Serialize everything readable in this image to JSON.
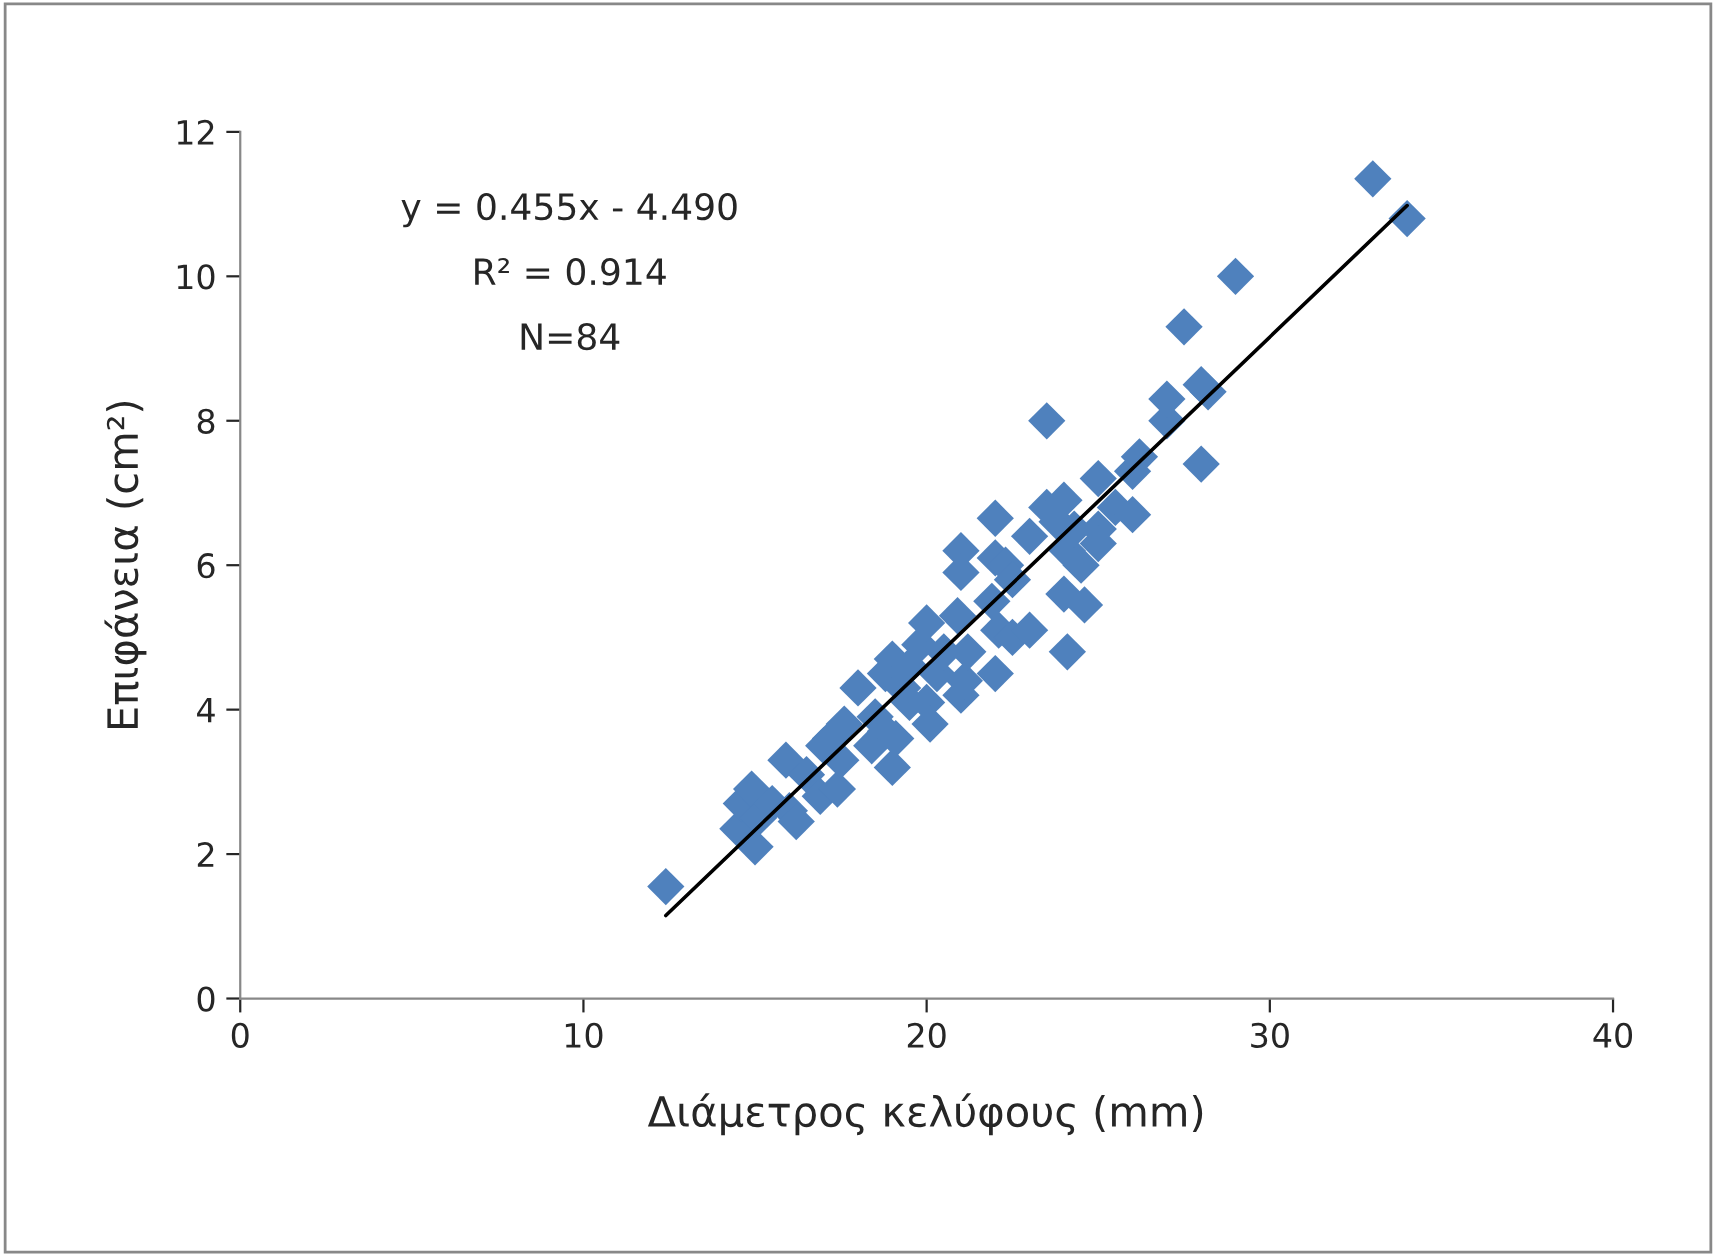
{
  "chart_data": {
    "type": "scatter",
    "xlabel": "Διάμετρος κελύφους (mm)",
    "ylabel": "Επιφάνεια (cm²)",
    "annotations": [
      "y = 0.455x - 4.490",
      "R² = 0.914",
      "N=84"
    ],
    "xlim": [
      0,
      40
    ],
    "xticks": [
      0,
      10,
      20,
      30,
      40
    ],
    "ylim": [
      0,
      12
    ],
    "yticks": [
      0,
      2,
      4,
      6,
      8,
      10,
      12
    ],
    "grid": false,
    "legend": false,
    "marker": "diamond",
    "series": [
      {
        "color": "#4f81bd",
        "x": [
          12.4,
          14.5,
          14.6,
          14.9,
          15.0,
          15.1,
          15.5,
          15.9,
          16.0,
          16.2,
          16.5,
          16.9,
          17.0,
          17.2,
          17.4,
          17.5,
          17.6,
          18.0,
          18.4,
          18.5,
          18.8,
          18.8,
          19.0,
          19.0,
          19.1,
          19.3,
          19.5,
          19.5,
          19.8,
          20.0,
          20.0,
          20.1,
          20.3,
          20.5,
          20.9,
          21.0,
          21.0,
          21.0,
          21.1,
          21.2,
          21.9,
          22.0,
          22.0,
          22.0,
          22.1,
          22.3,
          22.5,
          22.5,
          23.0,
          23.0,
          23.5,
          23.5,
          23.8,
          24.0,
          24.0,
          24.1,
          24.1,
          24.3,
          24.5,
          24.6,
          25.0,
          25.0,
          25.0,
          25.5,
          26.0,
          26.0,
          26.2,
          27.0,
          27.0,
          27.5,
          28.0,
          28.0,
          28.2,
          29.0,
          33.0,
          34.0
        ],
        "values": [
          1.55,
          2.35,
          2.7,
          2.9,
          2.1,
          2.5,
          2.7,
          3.3,
          2.6,
          2.45,
          3.1,
          2.8,
          3.5,
          3.6,
          2.9,
          3.3,
          3.8,
          4.3,
          3.5,
          3.9,
          3.7,
          4.5,
          3.2,
          4.7,
          3.6,
          4.3,
          4.6,
          4.1,
          4.9,
          5.2,
          4.1,
          3.8,
          4.5,
          4.8,
          5.3,
          6.2,
          5.9,
          4.2,
          4.4,
          4.8,
          5.5,
          6.65,
          6.1,
          4.5,
          5.1,
          6.0,
          5.8,
          5.0,
          5.1,
          6.4,
          8.0,
          6.8,
          6.6,
          6.9,
          5.6,
          6.2,
          4.8,
          6.5,
          6.0,
          5.45,
          7.2,
          6.5,
          6.3,
          6.8,
          7.3,
          6.7,
          7.5,
          8.0,
          8.3,
          9.3,
          8.5,
          7.4,
          8.4,
          10.0,
          11.35,
          10.8
        ]
      },
      {
        "type": "line",
        "color": "#000000",
        "x": [
          12.4,
          34.0
        ],
        "values": [
          1.15,
          10.98
        ],
        "marker": "none",
        "line_style": "solid"
      }
    ]
  }
}
